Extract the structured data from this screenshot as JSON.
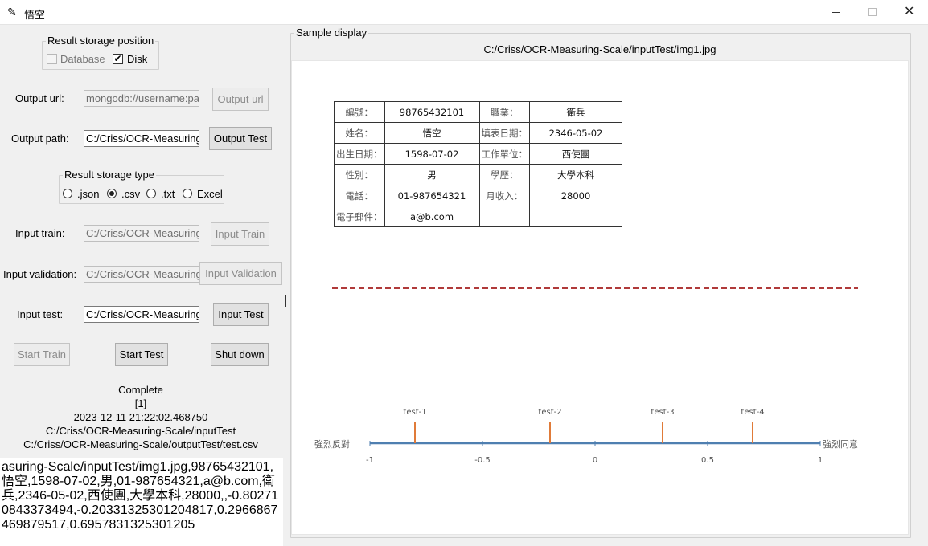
{
  "window": {
    "title": "悟空"
  },
  "left": {
    "storage_position": {
      "legend": "Result storage position",
      "database_label": "Database",
      "disk_label": "Disk",
      "database_checked": false,
      "disk_checked": true
    },
    "output_url": {
      "label": "Output url:",
      "value": "mongodb://username:pa",
      "button": "Output url"
    },
    "output_path": {
      "label": "Output path:",
      "value": "C:/Criss/OCR-Measuring",
      "button": "Output Test"
    },
    "storage_type": {
      "legend": "Result storage type",
      "options": [
        ".json",
        ".csv",
        ".txt",
        "Excel"
      ],
      "selected": ".csv"
    },
    "input_train": {
      "label": "Input train:",
      "value": "C:/Criss/OCR-Measuring",
      "button": "Input Train"
    },
    "input_validation": {
      "label": "Input validation:",
      "value": "C:/Criss/OCR-Measuring",
      "button": "Input Validation"
    },
    "input_test": {
      "label": "Input test:",
      "value": "C:/Criss/OCR-Measuring",
      "button": "Input Test"
    },
    "actions": {
      "start_train": "Start Train",
      "start_test": "Start Test",
      "shut_down": "Shut down"
    },
    "status_lines": [
      "Complete",
      "[1]",
      "2023-12-11 21:22:02.468750",
      "C:/Criss/OCR-Measuring-Scale/inputTest",
      "C:/Criss/OCR-Measuring-Scale/outputTest/test.csv"
    ],
    "result_text": "asuring-Scale/inputTest/img1.jpg,98765432101,悟空,1598-07-02,男,01-987654321,a@b.com,衛兵,2346-05-02,西使團,大學本科,28000,,-0.802710843373494,-0.20331325301204817,0.2966867469879517,0.6957831325301205"
  },
  "right": {
    "legend": "Sample display",
    "image_path": "C:/Criss/OCR-Measuring-Scale/inputTest/img1.jpg",
    "form": [
      [
        "編號：",
        "98765432101",
        "職業：",
        "衛兵"
      ],
      [
        "姓名：",
        "悟空",
        "填表日期：",
        "2346-05-02"
      ],
      [
        "出生日期：",
        "1598-07-02",
        "工作單位：",
        "西使團"
      ],
      [
        "性別：",
        "男",
        "學歷：",
        "大學本科"
      ],
      [
        "電話：",
        "01-987654321",
        "月收入：",
        "28000"
      ],
      [
        "電子郵件：",
        "a@b.com",
        "",
        ""
      ]
    ],
    "dashed_line_color": "#b03a3a",
    "scale": {
      "left_label": "強烈反對",
      "right_label": "強烈同意",
      "min": -1,
      "max": 1,
      "ticks": [
        "-1",
        "-0.5",
        "0",
        "0.5",
        "1"
      ],
      "tick_values": [
        -1,
        -0.5,
        0,
        0.5,
        1
      ],
      "axis_color": "#4f7fb0",
      "marker_color": "#e07b39",
      "markers": [
        {
          "label": "test-1",
          "value": -0.8
        },
        {
          "label": "test-2",
          "value": -0.2
        },
        {
          "label": "test-3",
          "value": 0.3
        },
        {
          "label": "test-4",
          "value": 0.7
        }
      ]
    }
  }
}
